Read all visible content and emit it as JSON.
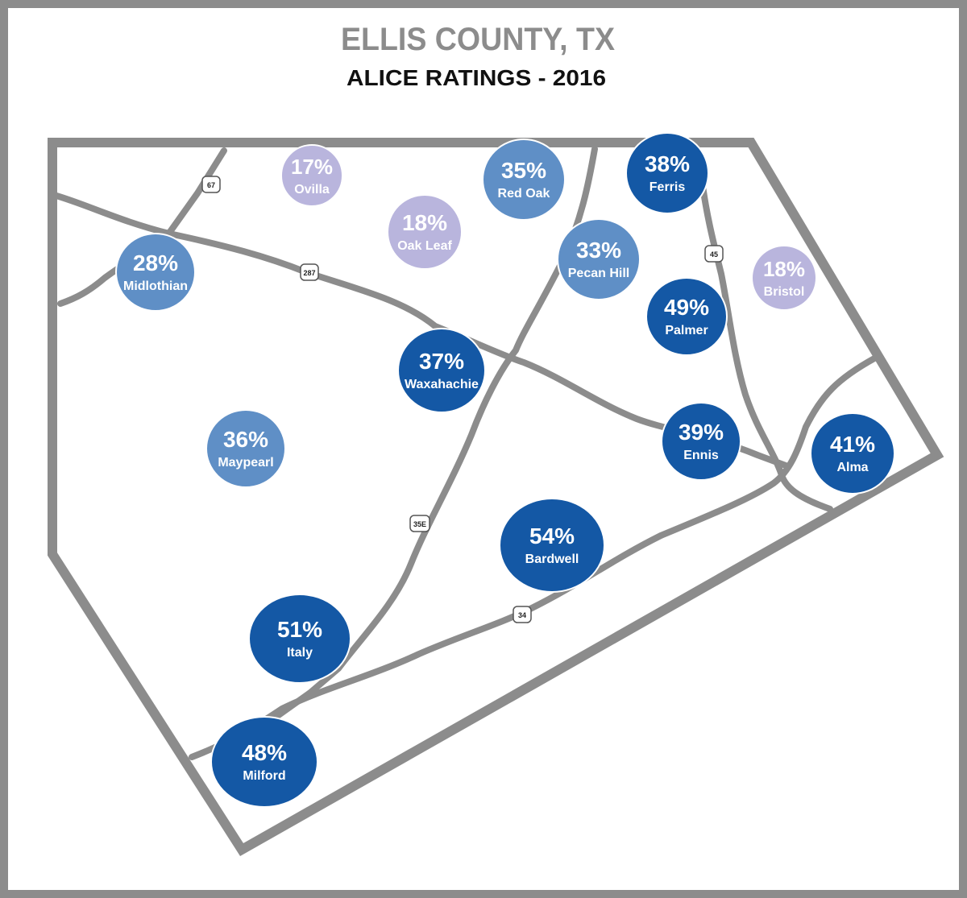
{
  "title": "ELLIS COUNTY, TX",
  "subtitle": "ALICE RATINGS - 2016",
  "places": [
    {
      "name": "Ovilla",
      "value": 17,
      "value_label": "17%",
      "color": "#b9b5dd"
    },
    {
      "name": "Red Oak",
      "value": 35,
      "value_label": "35%",
      "color": "#5f8fc6"
    },
    {
      "name": "Oak Leaf",
      "value": 18,
      "value_label": "18%",
      "color": "#b9b5dd"
    },
    {
      "name": "Ferris",
      "value": 38,
      "value_label": "38%",
      "color": "#1458a5"
    },
    {
      "name": "Pecan Hill",
      "value": 33,
      "value_label": "33%",
      "color": "#5f8fc6"
    },
    {
      "name": "Bristol",
      "value": 18,
      "value_label": "18%",
      "color": "#b9b5dd"
    },
    {
      "name": "Midlothian",
      "value": 28,
      "value_label": "28%",
      "color": "#5f8fc6"
    },
    {
      "name": "Palmer",
      "value": 49,
      "value_label": "49%",
      "color": "#1458a5"
    },
    {
      "name": "Waxahachie",
      "value": 37,
      "value_label": "37%",
      "color": "#1458a5"
    },
    {
      "name": "Ennis",
      "value": 39,
      "value_label": "39%",
      "color": "#1458a5"
    },
    {
      "name": "Alma",
      "value": 41,
      "value_label": "41%",
      "color": "#1458a5"
    },
    {
      "name": "Maypearl",
      "value": 36,
      "value_label": "36%",
      "color": "#5f8fc6"
    },
    {
      "name": "Bardwell",
      "value": 54,
      "value_label": "54%",
      "color": "#1458a5"
    },
    {
      "name": "Italy",
      "value": 51,
      "value_label": "51%",
      "color": "#1458a5"
    },
    {
      "name": "Milford",
      "value": 48,
      "value_label": "48%",
      "color": "#1458a5"
    }
  ],
  "highways": [
    "67",
    "287",
    "45",
    "35E",
    "34"
  ]
}
